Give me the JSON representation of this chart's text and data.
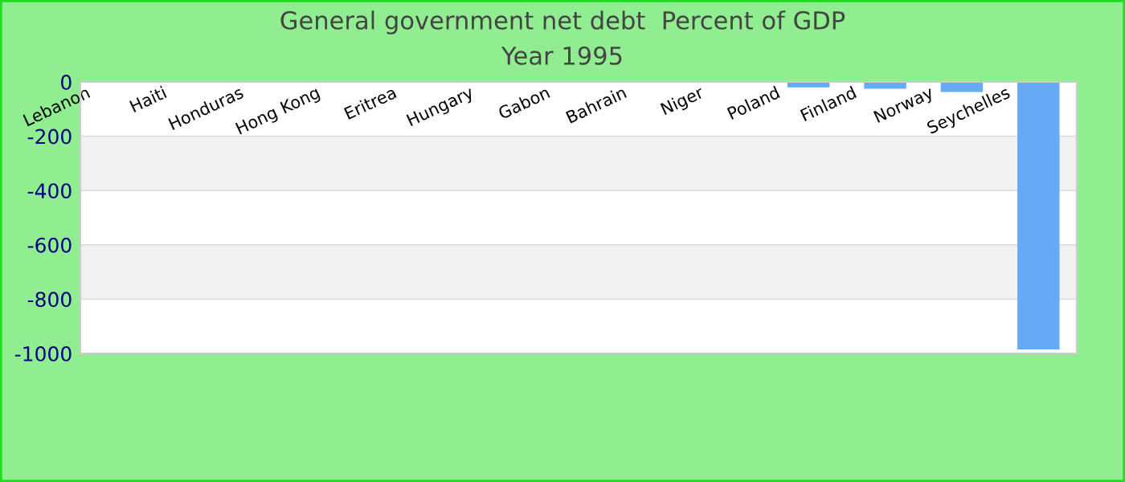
{
  "chart_data": {
    "type": "bar",
    "title": "General government net debt  Percent of GDP",
    "subtitle": "Year 1995",
    "categories": [
      "Lebanon",
      "Haiti",
      "Honduras",
      "Hong Kong",
      "Eritrea",
      "Hungary",
      "Gabon",
      "Bahrain",
      "Niger",
      "Poland",
      "Finland",
      "Norway",
      "Seychelles"
    ],
    "values": [
      null,
      null,
      null,
      null,
      null,
      null,
      null,
      null,
      null,
      -20,
      -25,
      -37,
      -985
    ],
    "color": "#64aaf5",
    "ylim": [
      -1000,
      0
    ],
    "yticks": [
      0,
      -200,
      -400,
      -600,
      -800,
      -1000
    ],
    "grid": "y"
  }
}
